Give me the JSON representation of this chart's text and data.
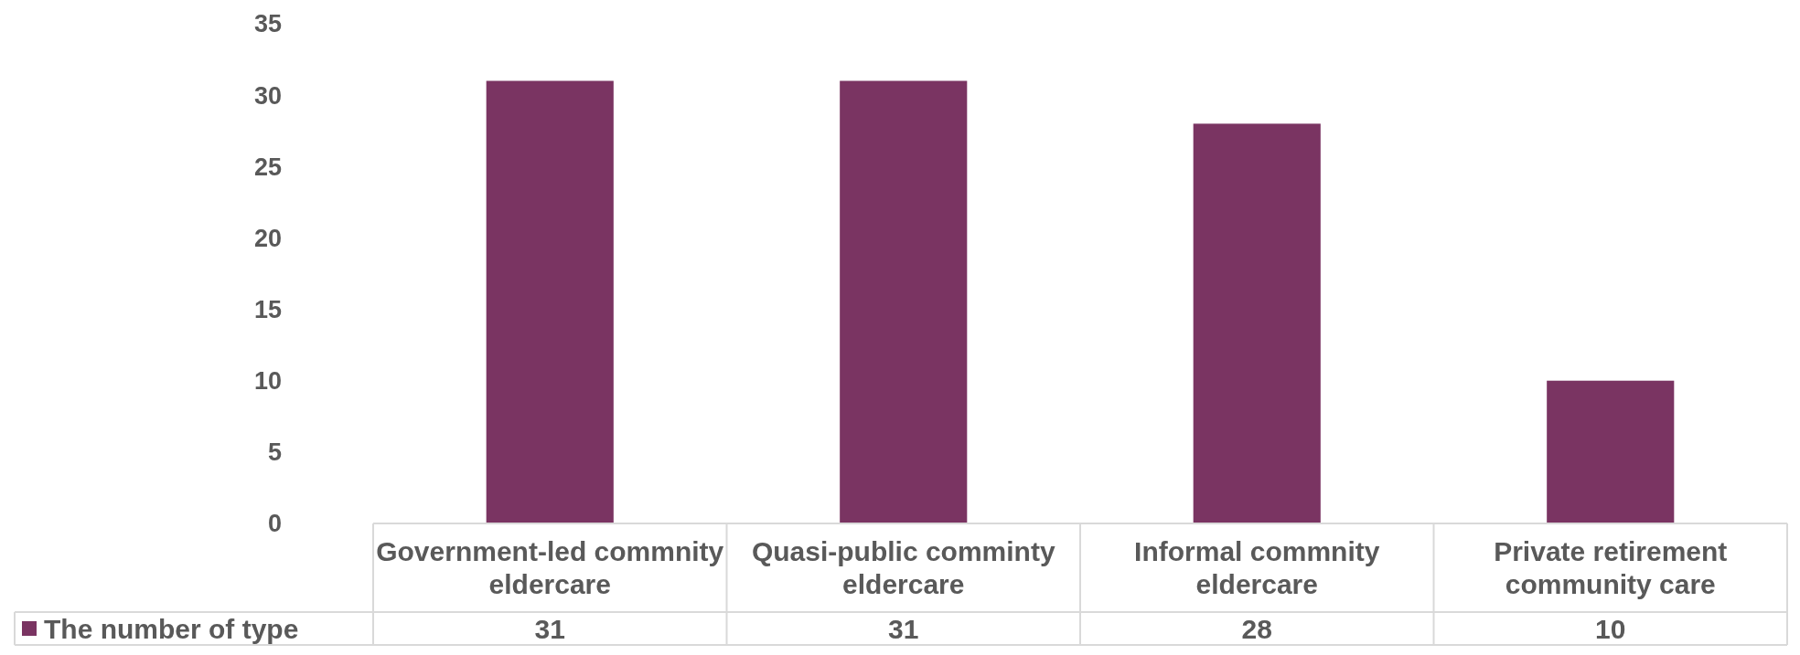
{
  "chart_data": {
    "type": "bar",
    "categories": [
      "Government-led commnity eldercare",
      "Quasi-public comminty eldercare",
      "Informal commnity eldercare",
      "Private retirement community care"
    ],
    "series": [
      {
        "name": "The number of type",
        "color": "#7a3462",
        "values": [
          31,
          31,
          28,
          10
        ]
      }
    ],
    "ylim": [
      0,
      35
    ],
    "yticks": [
      0,
      5,
      10,
      15,
      20,
      25,
      30,
      35
    ],
    "data_labels": true,
    "legend": "bottom",
    "grid": false
  }
}
